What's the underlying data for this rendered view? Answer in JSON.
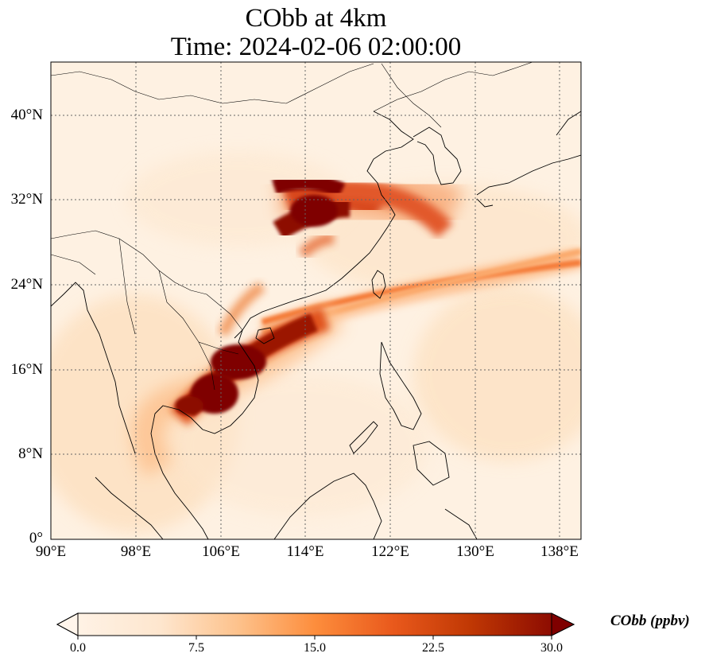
{
  "title": {
    "line1": "CObb at 4km",
    "line2": "Time: 2024-02-06 02:00:00"
  },
  "map": {
    "extent": {
      "lon_min": 90,
      "lon_max": 140,
      "lat_min": 0,
      "lat_max": 45
    },
    "lat_ticks": [
      "0°",
      "8°N",
      "16°N",
      "24°N",
      "32°N",
      "40°N"
    ],
    "lat_tick_values": [
      0,
      8,
      16,
      24,
      32,
      40
    ],
    "lon_ticks": [
      "90°E",
      "98°E",
      "106°E",
      "114°E",
      "122°E",
      "130°E",
      "138°E"
    ],
    "lon_tick_values": [
      90,
      98,
      106,
      114,
      122,
      130,
      138
    ],
    "gridlines": true,
    "gridline_style": "dotted",
    "plumes": [
      {
        "name": "east-china-plume",
        "level": "high"
      },
      {
        "name": "indochina-plume",
        "level": "high"
      },
      {
        "name": "pacific-streak",
        "level": "medium"
      }
    ]
  },
  "colorbar": {
    "label": "CObb (ppbv)",
    "ticks": [
      "0.0",
      "7.5",
      "15.0",
      "22.5",
      "30.0"
    ],
    "tick_values": [
      0,
      7.5,
      15,
      22.5,
      30
    ],
    "min": 0,
    "max": 30,
    "extend": "both",
    "colormap": [
      "#fff5eb",
      "#fdd3a7",
      "#fd9243",
      "#df4f0d",
      "#a33803",
      "#7f0000"
    ]
  }
}
